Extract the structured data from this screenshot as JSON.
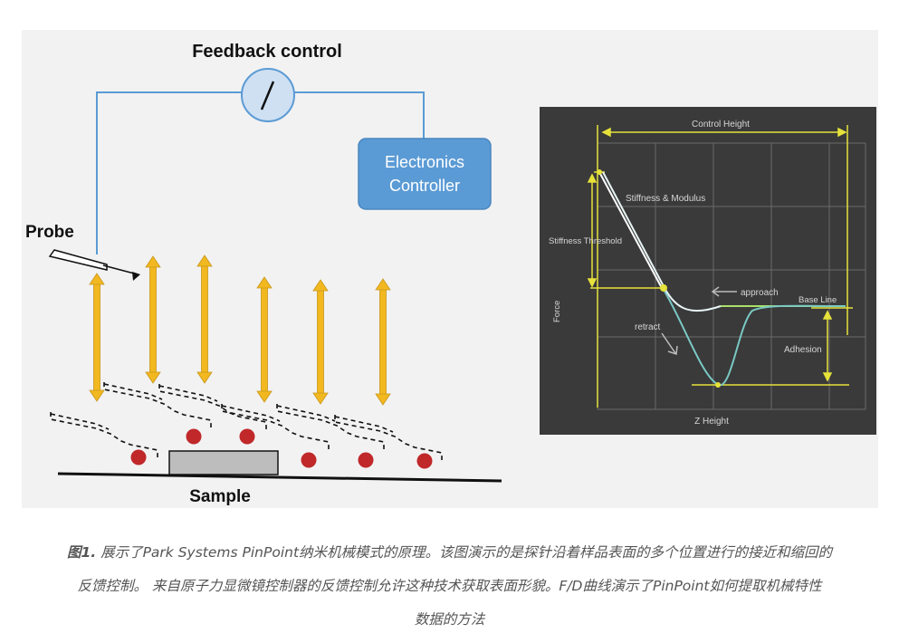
{
  "diagram": {
    "feedback_title": "Feedback control",
    "controller_line1": "Electronics",
    "controller_line2": "Controller",
    "probe_label": "Probe",
    "sample_label": "Sample",
    "colors": {
      "wire": "#5b9bd5",
      "arrow": "#f2b820",
      "dot": "#c0282a",
      "box": "#5b9bd5"
    }
  },
  "fd_chart": {
    "control_height": "Control Height",
    "stiffness_modulus": "Stiffness & Modulus",
    "stiffness_threshold": "Stiffness Threshold",
    "force_axis": "Force",
    "approach": "approach",
    "base_line": "Base Line",
    "retract": "retract",
    "adhesion": "Adhesion",
    "z_height": "Z Height",
    "colors": {
      "approach": "#7ac9c4",
      "retract": "#ffffff",
      "guide": "#e6e23a",
      "grid": "#6a6a6a"
    }
  },
  "caption": {
    "label": "图1.",
    "line1": " 展示了Park Systems PinPoint纳米机械模式的原理。该图演示的是探针沿着样品表面的多个位置进行的接近和缩回的",
    "line2": "反馈控制。 来自原子力显微镜控制器的反馈控制允许这种技术获取表面形貌。F/D曲线演示了PinPoint如何提取机械特性",
    "line3": "数据的方法"
  }
}
